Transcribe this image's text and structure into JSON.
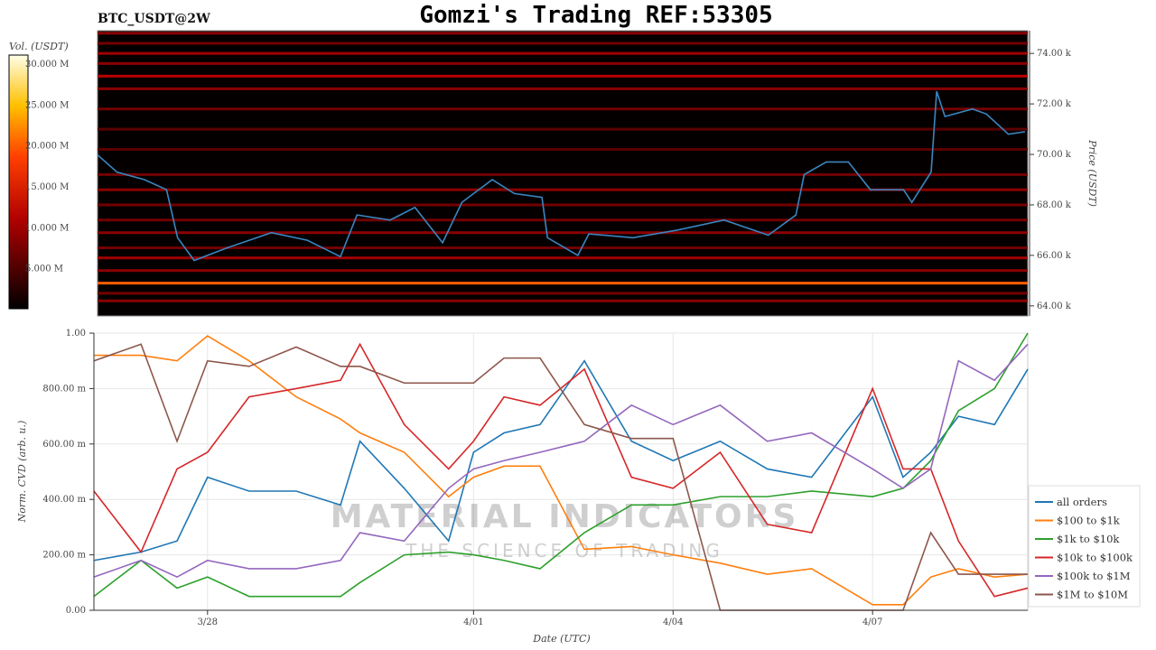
{
  "title": "Gomzi's Trading REF:53305",
  "symbol_label": "BTC_USDT@2W",
  "watermark": {
    "line1": "MATERIAL INDICATORS",
    "line2": "THE SCIENCE OF TRADING"
  },
  "chart_data": [
    {
      "type": "heatmap",
      "title": "BTC_USDT@2W",
      "ylabel": "Price (USDT)",
      "ylim": [
        63.6,
        74.9
      ],
      "y_ticks": [
        "64.00 k",
        "66.00 k",
        "68.00 k",
        "70.00 k",
        "72.00 k",
        "74.00 k"
      ],
      "y_tick_values": [
        64,
        66,
        68,
        70,
        72,
        74
      ],
      "xlim": [
        "3/26 07:00",
        "4/09 08:00"
      ],
      "colorbar": {
        "label": "Vol. (USDT)",
        "ticks": [
          "5.000 M",
          "10.000 M",
          "15.000 M",
          "20.000 M",
          "25.000 M",
          "30.000 M"
        ],
        "tick_values": [
          5,
          10,
          15,
          20,
          25,
          30
        ],
        "range": [
          0,
          31
        ]
      },
      "levels": [
        {
          "price": 64.9,
          "volume": 17
        },
        {
          "price": 64.2,
          "volume": 6
        },
        {
          "price": 64.5,
          "volume": 5
        },
        {
          "price": 65.4,
          "volume": 6
        },
        {
          "price": 65.9,
          "volume": 7
        },
        {
          "price": 66.3,
          "volume": 5
        },
        {
          "price": 66.9,
          "volume": 6
        },
        {
          "price": 67.4,
          "volume": 5
        },
        {
          "price": 68.0,
          "volume": 5
        },
        {
          "price": 68.6,
          "volume": 6
        },
        {
          "price": 69.2,
          "volume": 5
        },
        {
          "price": 70.2,
          "volume": 4
        },
        {
          "price": 71.0,
          "volume": 4
        },
        {
          "price": 71.8,
          "volume": 5
        },
        {
          "price": 72.6,
          "volume": 6
        },
        {
          "price": 73.1,
          "volume": 8
        },
        {
          "price": 73.6,
          "volume": 6
        },
        {
          "price": 74.0,
          "volume": 7
        },
        {
          "price": 74.4,
          "volume": 5
        },
        {
          "price": 74.8,
          "volume": 6
        }
      ],
      "price_series": {
        "x": [
          "3/26 07:00",
          "3/26 14:00",
          "3/27 00:00",
          "3/27 08:00",
          "3/27 12:00",
          "3/27 18:00",
          "3/28 06:00",
          "3/28 22:00",
          "3/29 11:00",
          "3/29 23:00",
          "3/30 05:00",
          "3/30 17:00",
          "3/31 02:00",
          "3/31 12:00",
          "3/31 19:00",
          "4/01 06:00",
          "4/01 14:00",
          "4/02 00:00",
          "4/02 02:00",
          "4/02 13:00",
          "4/02 17:00",
          "4/03 09:00",
          "4/04 01:00",
          "4/04 18:00",
          "4/05 10:00",
          "4/05 20:00",
          "4/05 23:00",
          "4/06 07:00",
          "4/06 15:00",
          "4/06 23:00",
          "4/07 11:00",
          "4/07 14:00",
          "4/07 21:00",
          "4/07 23:00",
          "4/08 02:00",
          "4/08 12:00",
          "4/08 17:00",
          "4/09 01:00",
          "4/09 07:00"
        ],
        "y": [
          69.98,
          69.3,
          69.0,
          68.6,
          66.7,
          65.8,
          66.3,
          66.9,
          66.6,
          65.95,
          67.6,
          67.4,
          67.9,
          66.5,
          68.1,
          69.0,
          68.45,
          68.3,
          66.7,
          66.0,
          66.85,
          66.7,
          67.0,
          67.4,
          66.8,
          67.6,
          69.2,
          69.7,
          69.7,
          68.6,
          68.6,
          68.1,
          69.3,
          72.5,
          71.5,
          71.8,
          71.6,
          70.8,
          70.9
        ],
        "color": "#3a86c0"
      }
    },
    {
      "type": "line",
      "xlabel": "Date (UTC)",
      "ylabel": "Norm. CVD (arb. u.)",
      "ylim": [
        0,
        1
      ],
      "xlim": [
        "3/26 07:00",
        "4/09 08:00"
      ],
      "x_ticks": [
        "3/28",
        "4/01",
        "4/04",
        "4/07"
      ],
      "y_ticks": [
        "0.00",
        "200.00 m",
        "400.00 m",
        "600.00 m",
        "800.00 m",
        "1.00"
      ],
      "y_tick_values": [
        0,
        0.2,
        0.4,
        0.6,
        0.8,
        1.0
      ],
      "grid": true,
      "legend": "right",
      "x": [
        "3/26 07:00",
        "3/27 00:00",
        "3/27 13:00",
        "3/28 00:00",
        "3/28 15:00",
        "3/29 08:00",
        "3/30 00:00",
        "3/30 07:00",
        "3/30 23:00",
        "3/31 15:00",
        "4/01 00:00",
        "4/01 11:00",
        "4/02 00:00",
        "4/02 16:00",
        "4/03 09:00",
        "4/04 00:00",
        "4/04 17:00",
        "4/05 10:00",
        "4/06 02:00",
        "4/07 00:00",
        "4/07 11:00",
        "4/07 21:00",
        "4/08 07:00",
        "4/08 20:00",
        "4/09 08:00"
      ],
      "series": [
        {
          "name": "all orders",
          "color": "#1f77b4",
          "values": [
            0.18,
            0.21,
            0.25,
            0.48,
            0.43,
            0.43,
            0.38,
            0.61,
            0.44,
            0.25,
            0.57,
            0.64,
            0.67,
            0.9,
            0.61,
            0.54,
            0.61,
            0.51,
            0.48,
            0.77,
            0.48,
            0.57,
            0.7,
            0.67,
            0.87
          ]
        },
        {
          "name": "$100 to $1k",
          "color": "#ff7f0e",
          "values": [
            0.92,
            0.92,
            0.9,
            0.99,
            0.9,
            0.77,
            0.69,
            0.64,
            0.57,
            0.41,
            0.48,
            0.52,
            0.52,
            0.22,
            0.23,
            0.2,
            0.17,
            0.13,
            0.15,
            0.02,
            0.02,
            0.12,
            0.15,
            0.12,
            0.13
          ]
        },
        {
          "name": "$1k to $10k",
          "color": "#2ca02c",
          "values": [
            0.05,
            0.18,
            0.08,
            0.12,
            0.05,
            0.05,
            0.05,
            0.1,
            0.2,
            0.21,
            0.2,
            0.18,
            0.15,
            0.28,
            0.38,
            0.38,
            0.41,
            0.41,
            0.43,
            0.41,
            0.44,
            0.54,
            0.72,
            0.8,
            1.0
          ]
        },
        {
          "name": "$10k to $100k",
          "color": "#d62728",
          "values": [
            0.43,
            0.21,
            0.51,
            0.57,
            0.77,
            0.8,
            0.83,
            0.96,
            0.67,
            0.51,
            0.61,
            0.77,
            0.74,
            0.87,
            0.48,
            0.44,
            0.57,
            0.31,
            0.28,
            0.8,
            0.51,
            0.51,
            0.25,
            0.05,
            0.08
          ]
        },
        {
          "name": "$100k to $1M",
          "color": "#9467bd",
          "values": [
            0.12,
            0.18,
            0.12,
            0.18,
            0.15,
            0.15,
            0.18,
            0.28,
            0.25,
            0.44,
            0.51,
            0.54,
            0.57,
            0.61,
            0.74,
            0.67,
            0.74,
            0.61,
            0.64,
            0.51,
            0.44,
            0.51,
            0.9,
            0.83,
            0.96
          ]
        },
        {
          "name": "$1M to $10M",
          "color": "#8c564b",
          "values": [
            0.9,
            0.96,
            0.61,
            0.9,
            0.88,
            0.95,
            0.88,
            0.88,
            0.82,
            0.82,
            0.82,
            0.91,
            0.91,
            0.67,
            0.62,
            0.62,
            0,
            0,
            0,
            0,
            0,
            0.28,
            0.13,
            0.13,
            0.13
          ]
        }
      ]
    }
  ]
}
